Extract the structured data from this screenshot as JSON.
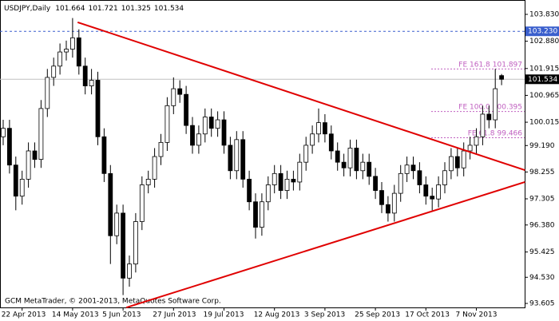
{
  "chart_data": {
    "type": "candlestick",
    "title": "USDJPY,Daily",
    "footer": "GCM MetaTrader, © 2001-2013, MetaQuotes Software Corp.",
    "color": "#000000",
    "categories": [
      null,
      null,
      null,
      "22 Apr 2013",
      null,
      null,
      null,
      null,
      null,
      null,
      null,
      "14 May 2013",
      null,
      null,
      null,
      null,
      null,
      null,
      null,
      "5 Jun 2013",
      null,
      null,
      null,
      null,
      null,
      null,
      null,
      "27 Jun 2013",
      null,
      null,
      null,
      null,
      null,
      null,
      null,
      "19 Jul 2013",
      null,
      null,
      null,
      null,
      null,
      null,
      null,
      "12 Aug 2013",
      null,
      null,
      null,
      null,
      null,
      null,
      null,
      "3 Sep 2013",
      null,
      null,
      null,
      null,
      null,
      null,
      null,
      "25 Sep 2013",
      null,
      null,
      null,
      null,
      null,
      null,
      null,
      "17 Oct 2013",
      null,
      null,
      null,
      null,
      null,
      null,
      null,
      "7 Nov 2013",
      null,
      null,
      null,
      null
    ],
    "open": [
      99.5,
      99.8,
      98.5,
      97.4,
      98.0,
      99.0,
      98.7,
      100.5,
      101.6,
      102.0,
      102.5,
      102.6,
      103.0,
      102.0,
      101.3,
      101.5,
      99.5,
      98.2,
      96.0,
      96.8,
      94.5,
      95.0,
      96.5,
      97.8,
      98.0,
      98.8,
      99.3,
      100.6,
      101.2,
      101.0,
      99.9,
      99.2,
      99.6,
      100.2,
      99.8,
      100.1,
      99.2,
      98.3,
      99.4,
      98.0,
      97.2,
      96.3,
      97.2,
      97.8,
      98.2,
      97.6,
      98.0,
      97.9,
      98.6,
      99.2,
      99.6,
      100.0,
      99.6,
      99.0,
      98.6,
      98.4,
      99.1,
      98.3,
      98.6,
      98.1,
      97.6,
      97.1,
      96.8,
      97.5,
      98.2,
      98.5,
      98.3,
      97.8,
      97.4,
      97.3,
      97.8,
      98.3,
      98.8,
      98.4,
      99.0,
      99.2,
      99.5,
      100.3,
      100.1,
      101.664
    ],
    "high": [
      100.1,
      100.1,
      98.8,
      98.3,
      99.3,
      99.3,
      100.8,
      101.9,
      102.3,
      102.8,
      102.9,
      103.7,
      103.3,
      102.3,
      101.9,
      101.8,
      99.8,
      98.5,
      97.1,
      97.1,
      95.3,
      96.8,
      98.1,
      98.3,
      99.1,
      99.6,
      100.9,
      101.6,
      101.5,
      101.3,
      100.2,
      99.9,
      100.5,
      100.5,
      100.4,
      100.4,
      99.5,
      99.7,
      99.7,
      98.3,
      97.5,
      97.5,
      98.1,
      98.5,
      98.5,
      98.3,
      98.3,
      98.9,
      99.5,
      99.9,
      100.5,
      100.3,
      99.9,
      99.3,
      98.9,
      99.4,
      99.4,
      98.9,
      98.9,
      98.4,
      97.9,
      97.4,
      97.8,
      98.5,
      98.8,
      98.8,
      98.6,
      98.1,
      97.7,
      98.1,
      98.6,
      99.1,
      99.1,
      99.3,
      99.5,
      99.8,
      100.6,
      100.6,
      101.9,
      101.721
    ],
    "low": [
      99.2,
      98.2,
      96.9,
      97.1,
      97.7,
      98.4,
      98.4,
      100.2,
      101.3,
      101.7,
      102.2,
      102.3,
      101.7,
      101.0,
      101.0,
      99.2,
      97.9,
      95.0,
      95.7,
      93.9,
      94.2,
      94.7,
      96.2,
      97.5,
      97.7,
      98.5,
      99.0,
      100.3,
      100.7,
      99.6,
      98.9,
      98.9,
      99.3,
      99.5,
      99.5,
      98.9,
      98.0,
      98.0,
      97.7,
      96.9,
      95.9,
      96.0,
      96.9,
      97.5,
      97.3,
      97.3,
      97.6,
      97.6,
      98.3,
      98.9,
      99.3,
      99.3,
      98.7,
      98.3,
      98.1,
      98.1,
      98.0,
      98.0,
      97.8,
      97.3,
      96.8,
      96.5,
      96.5,
      97.2,
      97.9,
      98.0,
      97.5,
      97.1,
      96.9,
      97.0,
      97.5,
      98.0,
      98.1,
      98.1,
      98.7,
      98.9,
      99.2,
      99.8,
      99.8,
      101.325
    ],
    "close": [
      99.8,
      98.5,
      97.4,
      98.0,
      99.0,
      98.7,
      100.5,
      101.6,
      102.0,
      102.5,
      102.6,
      103.0,
      102.0,
      101.3,
      101.5,
      99.5,
      98.2,
      96.0,
      96.8,
      94.5,
      95.0,
      96.5,
      97.8,
      98.0,
      98.8,
      99.3,
      100.6,
      101.2,
      101.0,
      99.9,
      99.2,
      99.6,
      100.2,
      99.8,
      100.1,
      99.2,
      98.3,
      99.4,
      98.0,
      97.2,
      96.3,
      97.2,
      97.8,
      98.2,
      97.6,
      98.0,
      97.9,
      98.6,
      99.2,
      99.6,
      100.0,
      99.6,
      99.0,
      98.6,
      98.4,
      99.1,
      98.3,
      98.6,
      98.1,
      97.6,
      97.1,
      96.8,
      97.5,
      98.2,
      98.5,
      98.3,
      97.8,
      97.4,
      97.3,
      97.8,
      98.3,
      98.8,
      98.4,
      99.0,
      99.2,
      99.5,
      100.3,
      100.1,
      101.2,
      101.534
    ],
    "ylim": [
      93.464,
      104.338
    ],
    "yticks": [
      {
        "value": 103.83,
        "label": "103.830"
      },
      {
        "value": 102.88,
        "label": "102.880"
      },
      {
        "value": 101.915,
        "label": "101.915"
      },
      {
        "value": 100.965,
        "label": "100.965"
      },
      {
        "value": 100.015,
        "label": "100.015"
      },
      {
        "value": 99.19,
        "label": "99.190"
      },
      {
        "value": 98.255,
        "label": "98.255"
      },
      {
        "value": 97.305,
        "label": "97.305"
      },
      {
        "value": 96.38,
        "label": "96.380"
      },
      {
        "value": 95.425,
        "label": "95.425"
      },
      {
        "value": 94.53,
        "label": "94.530"
      },
      {
        "value": 93.605,
        "label": "93.605"
      }
    ],
    "price_lines": [
      {
        "value": 103.23,
        "label": "103.230",
        "color": "#3a5fcd",
        "dashed": true
      },
      {
        "value": 101.534,
        "color": "#c0c0c0",
        "dashed": false
      }
    ],
    "fib_levels": [
      {
        "name": "FE 161.8",
        "value": 101.897,
        "color": "#c060c0"
      },
      {
        "name": "FE 100.0",
        "value": 100.395,
        "color": "#c060c0"
      },
      {
        "name": "FE 61.8",
        "value": 99.466,
        "color": "#c060c0"
      }
    ],
    "trendlines": [
      {
        "x": [
          11.8,
          82.7
        ],
        "y": [
          103.55,
          98.32
        ],
        "color": "#e00000"
      },
      {
        "x": [
          19.5,
          82.7
        ],
        "y": [
          93.46,
          97.9
        ],
        "color": "#e00000"
      }
    ]
  }
}
